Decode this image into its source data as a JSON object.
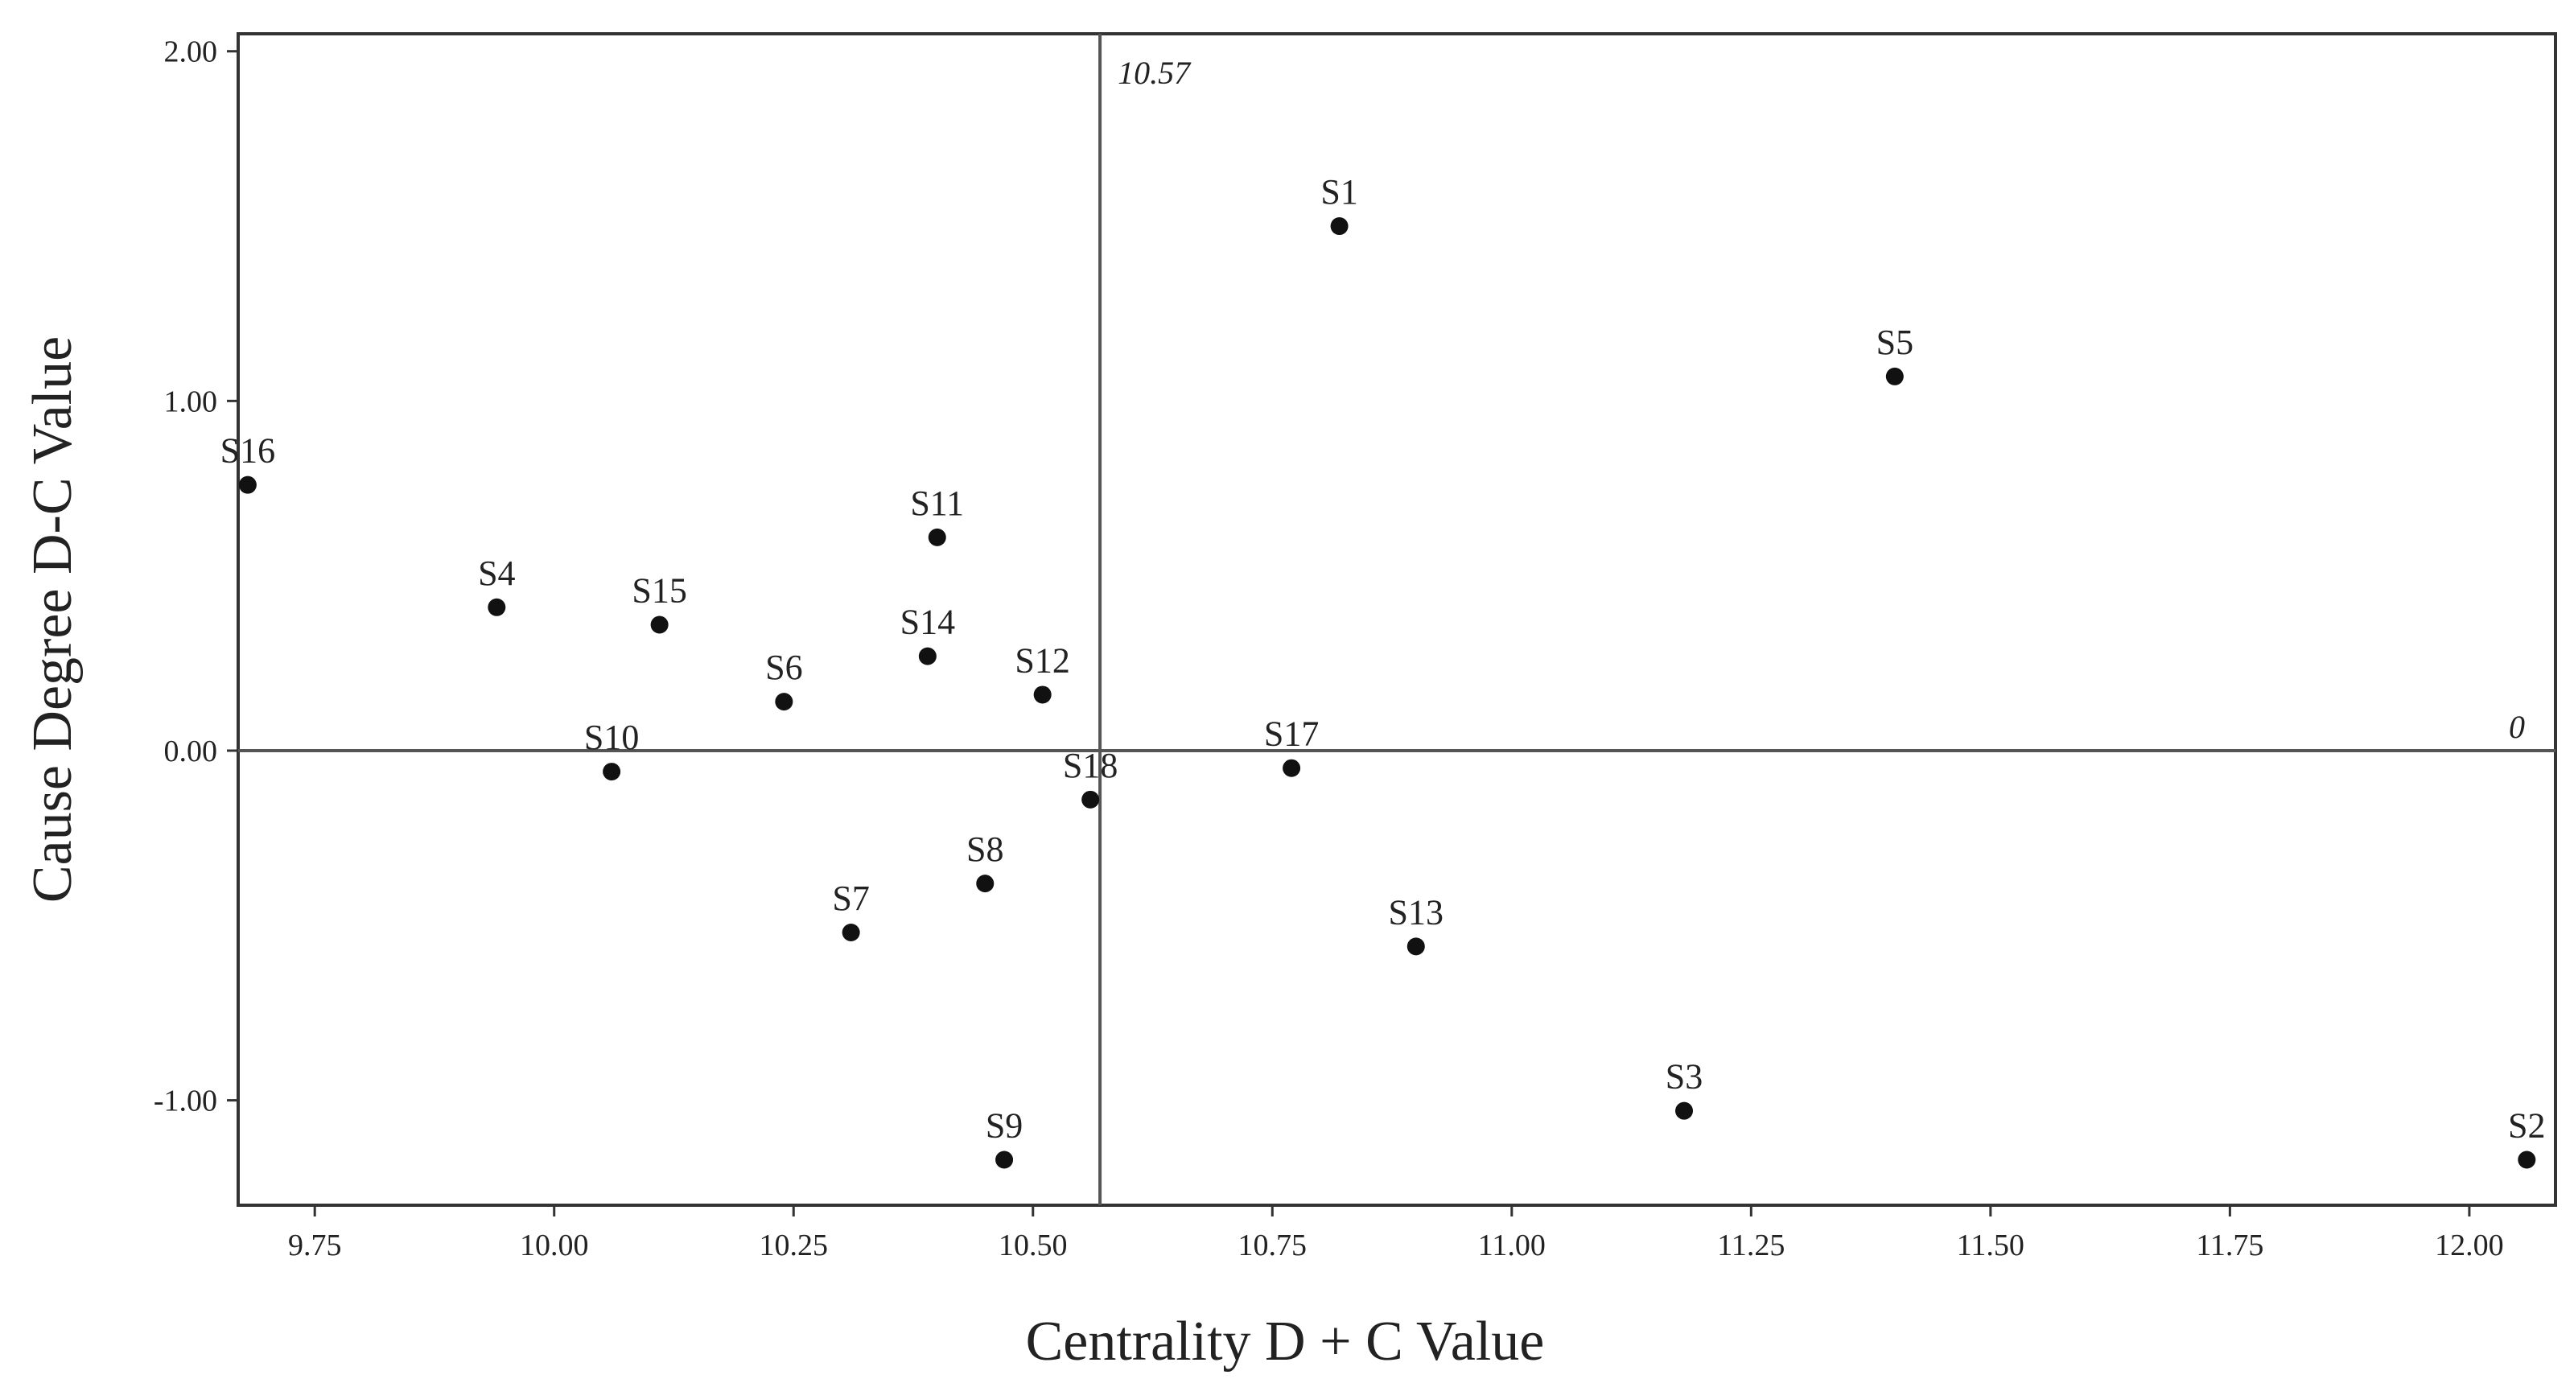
{
  "chart_data": {
    "type": "scatter",
    "title": "",
    "xlabel": "Centrality D + C Value",
    "ylabel": "Cause Degree D-C Value",
    "xlim": [
      9.67,
      12.09
    ],
    "ylim": [
      -1.3,
      2.05
    ],
    "grid": false,
    "x_ticks": [
      "9.75",
      "10.00",
      "10.25",
      "10.50",
      "10.75",
      "11.00",
      "11.25",
      "11.50",
      "11.75",
      "12.00"
    ],
    "y_ticks": [
      "2.00",
      "1.00",
      "0.00",
      "-1.00"
    ],
    "reference_lines": {
      "vertical": {
        "value": 10.57,
        "label": "10.57"
      },
      "horizontal": {
        "value": 0,
        "label": "0"
      }
    },
    "points": [
      {
        "label": "S1",
        "x": 10.82,
        "y": 1.5
      },
      {
        "label": "S2",
        "x": 12.06,
        "y": -1.17
      },
      {
        "label": "S3",
        "x": 11.18,
        "y": -1.03
      },
      {
        "label": "S4",
        "x": 9.94,
        "y": 0.41
      },
      {
        "label": "S5",
        "x": 11.4,
        "y": 1.07
      },
      {
        "label": "S6",
        "x": 10.24,
        "y": 0.14
      },
      {
        "label": "S7",
        "x": 10.31,
        "y": -0.52
      },
      {
        "label": "S8",
        "x": 10.45,
        "y": -0.38
      },
      {
        "label": "S9",
        "x": 10.47,
        "y": -1.17
      },
      {
        "label": "S10",
        "x": 10.06,
        "y": -0.06
      },
      {
        "label": "S11",
        "x": 10.4,
        "y": 0.61
      },
      {
        "label": "S12",
        "x": 10.51,
        "y": 0.16
      },
      {
        "label": "S13",
        "x": 10.9,
        "y": -0.56
      },
      {
        "label": "S14",
        "x": 10.39,
        "y": 0.27
      },
      {
        "label": "S15",
        "x": 10.11,
        "y": 0.36
      },
      {
        "label": "S16",
        "x": 9.68,
        "y": 0.76
      },
      {
        "label": "S17",
        "x": 10.77,
        "y": -0.05
      },
      {
        "label": "S18",
        "x": 10.56,
        "y": -0.14
      }
    ]
  }
}
